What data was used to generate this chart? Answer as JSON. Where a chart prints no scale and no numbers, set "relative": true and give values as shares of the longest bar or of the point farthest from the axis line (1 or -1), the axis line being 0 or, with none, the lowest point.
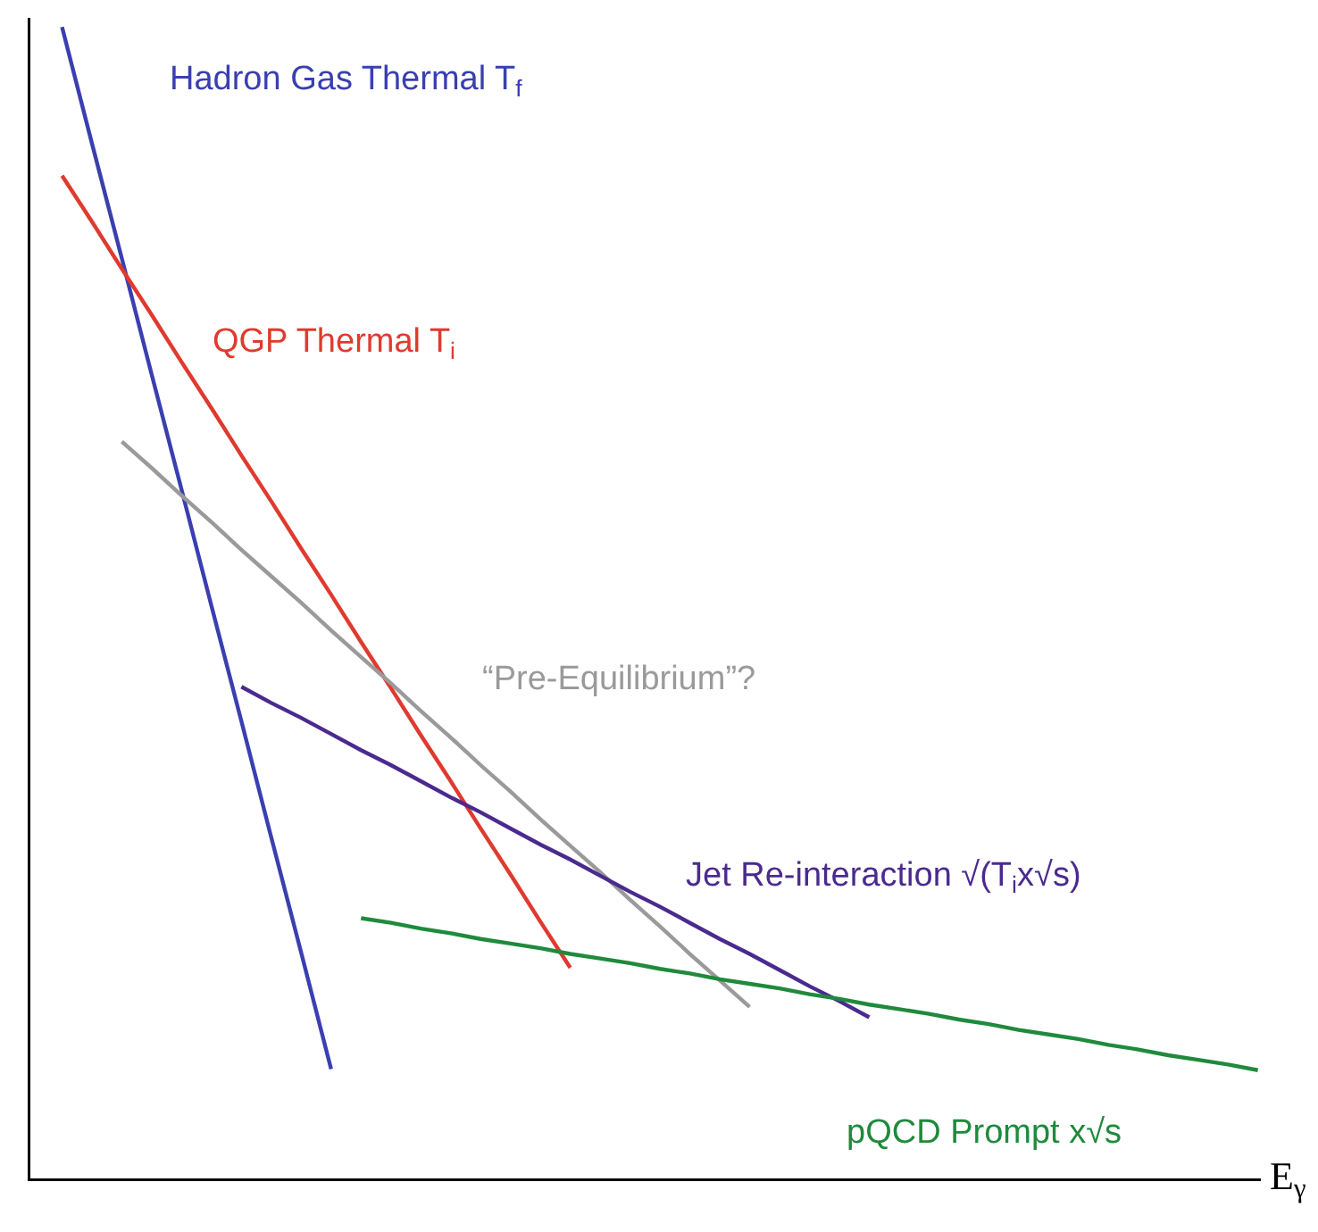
{
  "chart_data": {
    "type": "line",
    "relative": true,
    "xlabel": "E$_{γ}$",
    "categories": [
      null,
      null,
      null,
      null,
      null,
      null,
      null,
      null,
      null,
      null,
      null,
      null,
      null,
      null,
      null,
      null,
      null,
      null,
      null,
      null,
      null,
      null,
      null,
      null,
      null,
      null,
      null,
      null,
      null,
      null,
      null,
      null,
      null,
      null,
      null,
      null,
      null,
      null,
      null,
      null,
      null
    ],
    "series": [
      {
        "name": "Hadron Gas Thermal T$_{f}$",
        "color": "#3a3fb0",
        "values": [
          1,
          0.899,
          0.799,
          0.698,
          0.598,
          0.497,
          0.397,
          0.296,
          0.196,
          0.095,
          null,
          null,
          null,
          null,
          null,
          null,
          null,
          null,
          null,
          null,
          null,
          null,
          null,
          null,
          null,
          null,
          null,
          null,
          null,
          null,
          null,
          null,
          null,
          null,
          null,
          null,
          null,
          null,
          null,
          null,
          null
        ]
      },
      {
        "name": "QGP Thermal T$_{i}$",
        "color": "#e03a2f",
        "values": [
          0.871,
          0.831,
          0.79,
          0.75,
          0.709,
          0.669,
          0.628,
          0.588,
          0.547,
          0.507,
          0.466,
          0.426,
          0.385,
          0.345,
          0.304,
          0.264,
          0.223,
          0.183,
          null,
          null,
          null,
          null,
          null,
          null,
          null,
          null,
          null,
          null,
          null,
          null,
          null,
          null,
          null,
          null,
          null,
          null,
          null,
          null,
          null,
          null,
          null
        ]
      },
      {
        "name": "“Pre-Equilibrium”?",
        "color": "#9a9a9a",
        "values": [
          null,
          null,
          0.64,
          0.617,
          0.593,
          0.57,
          0.546,
          0.523,
          0.5,
          0.476,
          0.453,
          0.43,
          0.406,
          0.383,
          0.359,
          0.336,
          0.312,
          0.289,
          0.266,
          0.242,
          0.219,
          0.195,
          0.172,
          0.149,
          null,
          null,
          null,
          null,
          null,
          null,
          null,
          null,
          null,
          null,
          null,
          null,
          null,
          null,
          null,
          null,
          null
        ]
      },
      {
        "name": "Jet Re-interaction √(T$_{i}$x√s)",
        "color": "#4b2a8f",
        "values": [
          null,
          null,
          null,
          null,
          null,
          null,
          0.427,
          0.413,
          0.4,
          0.386,
          0.372,
          0.359,
          0.345,
          0.331,
          0.318,
          0.304,
          0.29,
          0.277,
          0.263,
          0.249,
          0.236,
          0.222,
          0.208,
          0.195,
          0.181,
          0.167,
          0.154,
          0.14,
          null,
          null,
          null,
          null,
          null,
          null,
          null,
          null,
          null,
          null,
          null,
          null,
          null
        ]
      },
      {
        "name": "pQCD Prompt x√s",
        "color": "#1f8a3c",
        "values": [
          null,
          null,
          null,
          null,
          null,
          null,
          null,
          null,
          null,
          null,
          0.226,
          0.222,
          0.217,
          0.213,
          0.208,
          0.204,
          0.2,
          0.195,
          0.191,
          0.187,
          0.182,
          0.178,
          0.173,
          0.169,
          0.165,
          0.16,
          0.156,
          0.151,
          0.147,
          0.143,
          0.138,
          0.134,
          0.129,
          0.125,
          0.121,
          0.116,
          0.112,
          0.107,
          0.103,
          0.099,
          0.094
        ]
      }
    ]
  }
}
